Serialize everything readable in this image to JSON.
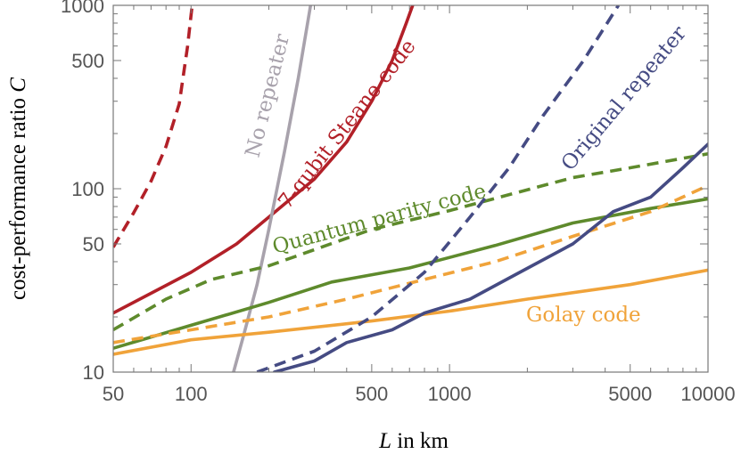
{
  "chart_data": {
    "type": "line",
    "xscale": "log",
    "yscale": "log",
    "xlabel": "L in km",
    "xlabel_parts": [
      "L",
      " in km"
    ],
    "ylabel": "cost-performance ratio C",
    "ylabel_parts": [
      "cost-performance ratio ",
      "C"
    ],
    "xlim": [
      50,
      10000
    ],
    "ylim": [
      10,
      1000
    ],
    "xticks": [
      50,
      100,
      500,
      1000,
      5000,
      10000
    ],
    "xtick_labels": [
      "50",
      "100",
      "500",
      "1000",
      "5000",
      "10000"
    ],
    "yticks": [
      10,
      50,
      100,
      500,
      1000
    ],
    "ytick_labels": [
      "10",
      "50",
      "100",
      "500",
      "1000"
    ],
    "grid": false,
    "colors": {
      "red": "#b22028",
      "gray": "#a8a2ac",
      "green": "#5e8a2c",
      "orange": "#f0a33a",
      "navy": "#454b83"
    },
    "series": [
      {
        "name": "7-qubit Steane code (dashed)",
        "color": "red",
        "dash": true,
        "points": [
          [
            50,
            48
          ],
          [
            60,
            74
          ],
          [
            70,
            110
          ],
          [
            80,
            170
          ],
          [
            90,
            290
          ],
          [
            97,
            600
          ],
          [
            101,
            1000
          ]
        ]
      },
      {
        "name": "7-qubit Steane code",
        "color": "red",
        "dash": false,
        "points": [
          [
            50,
            21
          ],
          [
            100,
            35
          ],
          [
            150,
            50
          ],
          [
            200,
            70
          ],
          [
            300,
            113
          ],
          [
            400,
            180
          ],
          [
            500,
            300
          ],
          [
            600,
            500
          ],
          [
            680,
            800
          ],
          [
            720,
            1000
          ]
        ]
      },
      {
        "name": "No repeater",
        "color": "gray",
        "dash": false,
        "points": [
          [
            146,
            10
          ],
          [
            160,
            16
          ],
          [
            180,
            30
          ],
          [
            200,
            60
          ],
          [
            230,
            160
          ],
          [
            260,
            400
          ],
          [
            290,
            1000
          ]
        ]
      },
      {
        "name": "Quantum parity code (dashed)",
        "color": "green",
        "dash": true,
        "points": [
          [
            50,
            17
          ],
          [
            80,
            25
          ],
          [
            120,
            32
          ],
          [
            200,
            38
          ],
          [
            500,
            60
          ],
          [
            1000,
            76
          ],
          [
            3000,
            115
          ],
          [
            5000,
            130
          ],
          [
            10000,
            155
          ]
        ]
      },
      {
        "name": "Quantum parity code",
        "color": "green",
        "dash": false,
        "points": [
          [
            50,
            13.5
          ],
          [
            100,
            18
          ],
          [
            200,
            24
          ],
          [
            350,
            31
          ],
          [
            700,
            37
          ],
          [
            1500,
            49
          ],
          [
            3000,
            65
          ],
          [
            6000,
            78
          ],
          [
            10000,
            88
          ]
        ]
      },
      {
        "name": "Golay code (dashed)",
        "color": "orange",
        "dash": true,
        "points": [
          [
            50,
            14.5
          ],
          [
            100,
            17
          ],
          [
            200,
            20
          ],
          [
            400,
            25
          ],
          [
            800,
            32
          ],
          [
            1500,
            40
          ],
          [
            3000,
            55
          ],
          [
            6000,
            75
          ],
          [
            10000,
            104
          ]
        ]
      },
      {
        "name": "Golay code",
        "color": "orange",
        "dash": false,
        "points": [
          [
            50,
            12.5
          ],
          [
            100,
            15
          ],
          [
            200,
            16.5
          ],
          [
            500,
            19
          ],
          [
            1000,
            21.5
          ],
          [
            2000,
            25
          ],
          [
            5000,
            30
          ],
          [
            10000,
            36
          ]
        ]
      },
      {
        "name": "Original repeater (dashed)",
        "color": "navy",
        "dash": true,
        "points": [
          [
            180,
            10
          ],
          [
            300,
            13
          ],
          [
            500,
            20
          ],
          [
            800,
            35
          ],
          [
            1200,
            70
          ],
          [
            1700,
            130
          ],
          [
            2300,
            250
          ],
          [
            3300,
            500
          ],
          [
            4500,
            1000
          ]
        ]
      },
      {
        "name": "Original repeater",
        "color": "navy",
        "dash": false,
        "points": [
          [
            210,
            10
          ],
          [
            300,
            11.5
          ],
          [
            400,
            14.5
          ],
          [
            600,
            17
          ],
          [
            800,
            21
          ],
          [
            1200,
            25
          ],
          [
            1800,
            34
          ],
          [
            3000,
            50
          ],
          [
            4300,
            75
          ],
          [
            6000,
            90
          ],
          [
            8000,
            130
          ],
          [
            10000,
            175
          ]
        ]
      }
    ],
    "annotations": [
      {
        "text": "7-qubit Steane code",
        "color": "red"
      },
      {
        "text": "No repeater",
        "color": "gray"
      },
      {
        "text": "Quantum parity code",
        "color": "green"
      },
      {
        "text": "Original repeater",
        "color": "navy"
      },
      {
        "text": "Golay code",
        "color": "orange"
      }
    ]
  }
}
